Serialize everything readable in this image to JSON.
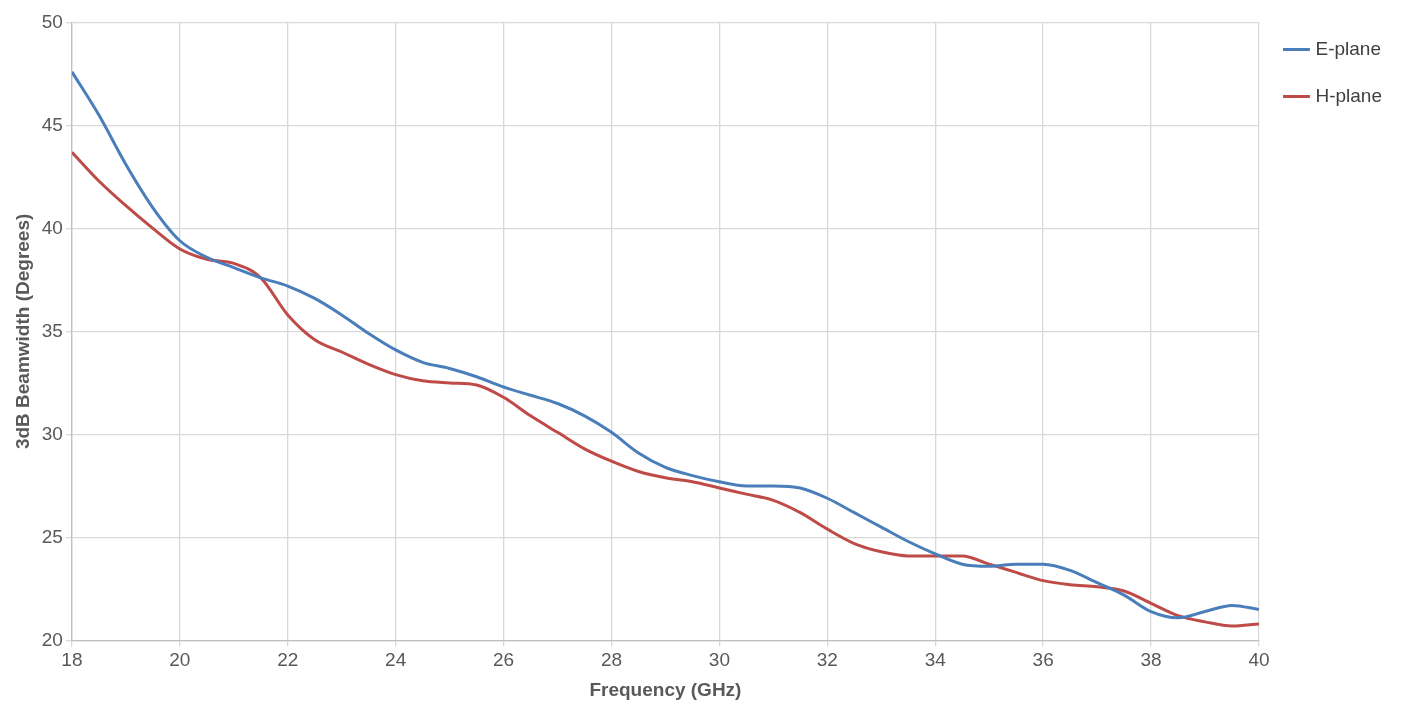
{
  "chart_data": {
    "type": "line",
    "xlabel": "Frequency (GHz)",
    "ylabel": "3dB Beamwidth (Degrees)",
    "x": [
      18,
      18.5,
      19,
      19.5,
      20,
      20.5,
      21,
      21.5,
      22,
      22.5,
      23,
      23.5,
      24,
      24.5,
      25,
      25.5,
      26,
      26.5,
      27,
      27.5,
      28,
      28.5,
      29,
      29.5,
      30,
      30.5,
      31,
      31.5,
      32,
      32.5,
      33,
      33.5,
      34,
      34.5,
      35,
      35.5,
      36,
      36.5,
      37,
      37.5,
      38,
      38.5,
      39,
      39.5,
      40
    ],
    "series": [
      {
        "name": "E-plane",
        "color": "#4a7ebb",
        "values": [
          47.6,
          45.5,
          43.1,
          41.0,
          39.4,
          38.6,
          38.1,
          37.6,
          37.2,
          36.6,
          35.8,
          34.9,
          34.1,
          33.5,
          33.2,
          32.8,
          32.3,
          31.9,
          31.5,
          30.9,
          30.1,
          29.1,
          28.4,
          28.0,
          27.7,
          27.5,
          27.5,
          27.4,
          26.9,
          26.2,
          25.5,
          24.8,
          24.2,
          23.7,
          23.6,
          23.7,
          23.7,
          23.4,
          22.8,
          22.2,
          21.4,
          21.1,
          21.4,
          21.7,
          21.5
        ]
      },
      {
        "name": "H-plane",
        "color": "#be4b48",
        "values": [
          43.7,
          42.3,
          41.1,
          40.0,
          39.0,
          38.5,
          38.3,
          37.6,
          35.8,
          34.6,
          34.0,
          33.4,
          32.9,
          32.6,
          32.5,
          32.4,
          31.8,
          30.9,
          30.1,
          29.3,
          28.7,
          28.2,
          27.9,
          27.7,
          27.4,
          27.1,
          26.8,
          26.2,
          25.4,
          24.7,
          24.3,
          24.1,
          24.1,
          24.1,
          23.7,
          23.3,
          22.9,
          22.7,
          22.6,
          22.4,
          21.8,
          21.2,
          20.9,
          20.7,
          20.8
        ]
      }
    ],
    "xlim": [
      18,
      40
    ],
    "xticks": [
      18,
      20,
      22,
      24,
      26,
      28,
      30,
      32,
      34,
      36,
      38,
      40
    ],
    "ylim": [
      20,
      50
    ],
    "yticks": [
      20,
      25,
      30,
      35,
      40,
      45,
      50
    ],
    "grid": true,
    "legend": "top right",
    "marker": "none",
    "line_style": "solid"
  }
}
